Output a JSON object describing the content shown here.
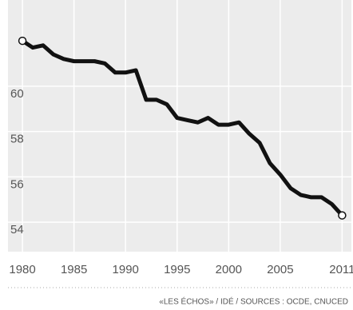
{
  "chart_data": {
    "type": "line",
    "x": [
      1980,
      1981,
      1982,
      1983,
      1984,
      1985,
      1986,
      1987,
      1988,
      1989,
      1990,
      1991,
      1992,
      1993,
      1994,
      1995,
      1996,
      1997,
      1998,
      1999,
      2000,
      2001,
      2002,
      2003,
      2004,
      2005,
      2006,
      2007,
      2008,
      2009,
      2010,
      2011
    ],
    "series": [
      {
        "color": "#111111",
        "values": [
          62.0,
          61.7,
          61.8,
          61.4,
          61.2,
          61.1,
          61.1,
          61.1,
          61.0,
          60.6,
          60.6,
          60.7,
          59.4,
          59.4,
          59.2,
          58.6,
          58.5,
          58.4,
          58.6,
          58.3,
          58.3,
          58.4,
          57.9,
          57.5,
          56.6,
          56.1,
          55.5,
          55.2,
          55.1,
          55.1,
          54.8,
          54.3
        ]
      }
    ],
    "xlim": [
      1978.6,
      2011.9
    ],
    "xticks": [
      1980,
      1985,
      1990,
      1995,
      2000,
      2005,
      2011
    ],
    "ylim": [
      52.7,
      63.8
    ],
    "yticks": [
      54,
      56,
      58,
      60
    ],
    "grid": true,
    "endpoint_markers": true,
    "source": "«LES ÉCHOS» / IDÉ / SOURCES : OCDE, CNUCED"
  }
}
